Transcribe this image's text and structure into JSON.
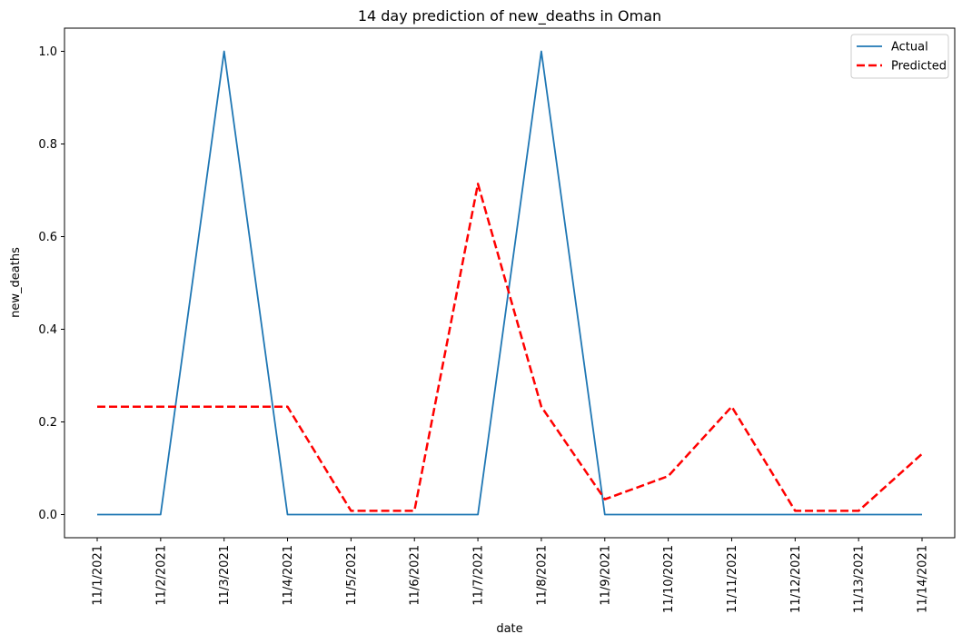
{
  "chart_data": {
    "type": "line",
    "title": "14 day prediction of new_deaths in Oman",
    "xlabel": "date",
    "ylabel": "new_deaths",
    "categories": [
      "11/1/2021",
      "11/2/2021",
      "11/3/2021",
      "11/4/2021",
      "11/5/2021",
      "11/6/2021",
      "11/7/2021",
      "11/8/2021",
      "11/9/2021",
      "11/10/2021",
      "11/11/2021",
      "11/12/2021",
      "11/13/2021",
      "11/14/2021"
    ],
    "ylim": [
      -0.05,
      1.05
    ],
    "yticks": [
      "0.0",
      "0.2",
      "0.4",
      "0.6",
      "0.8",
      "1.0"
    ],
    "grid": false,
    "legend_position": "top-right",
    "series": [
      {
        "name": "Actual",
        "color": "#1f77b4",
        "style": "solid",
        "values": [
          0,
          0,
          1,
          0,
          0,
          0,
          0,
          1,
          0,
          0,
          0,
          0,
          0,
          0
        ]
      },
      {
        "name": "Predicted",
        "color": "#ff0000",
        "style": "dashed",
        "values": [
          0.233,
          0.233,
          0.233,
          0.233,
          0.008,
          0.008,
          0.714,
          0.233,
          0.033,
          0.083,
          0.233,
          0.008,
          0.008,
          0.131
        ]
      }
    ]
  }
}
